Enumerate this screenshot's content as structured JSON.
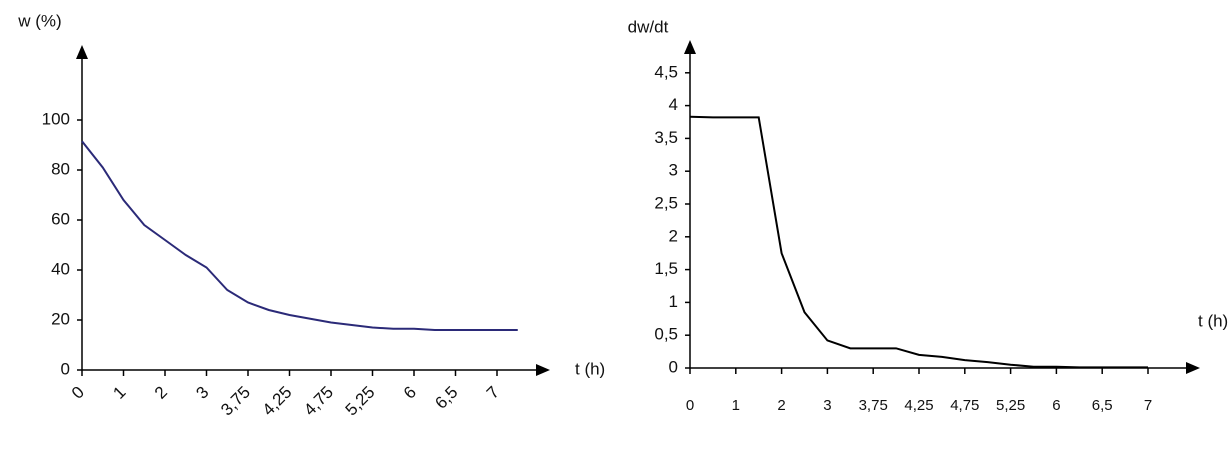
{
  "chart_data": [
    {
      "type": "line",
      "y_label": "w (%)",
      "x_label": "t (h)",
      "color": "#2b2a78",
      "categories": [
        "0",
        null,
        "1",
        null,
        "2",
        null,
        "3",
        null,
        "3,75",
        null,
        "4,25",
        null,
        "4,75",
        null,
        "5,25",
        null,
        "6",
        null,
        "6,5",
        null,
        "7",
        null
      ],
      "values": [
        91.5,
        81,
        68,
        58,
        52,
        46,
        41,
        32,
        27,
        24,
        22,
        20.5,
        19,
        18,
        17,
        16.5,
        16.5,
        16,
        16,
        16,
        16,
        16
      ],
      "ylim": [
        0,
        130
      ],
      "yticks": [
        0,
        20,
        40,
        60,
        80,
        100
      ]
    },
    {
      "type": "line",
      "y_label": "dw/dt",
      "x_label": "t (h)",
      "color": "#000000",
      "categories": [
        "0",
        null,
        "1",
        null,
        "2",
        null,
        "3",
        null,
        "3,75",
        null,
        "4,25",
        null,
        "4,75",
        null,
        "5,25",
        null,
        "6",
        null,
        "6,5",
        null,
        "7"
      ],
      "values": [
        3.83,
        3.82,
        3.82,
        3.82,
        1.75,
        0.85,
        0.42,
        0.3,
        0.3,
        0.3,
        0.2,
        0.17,
        0.12,
        0.09,
        0.05,
        0.02,
        0.02,
        0.01,
        0.01,
        0.01,
        0.01
      ],
      "ylim": [
        0,
        5
      ],
      "yticks": [
        0,
        {
          "value": 0.5,
          "label": "0,5"
        },
        1,
        {
          "value": 1.5,
          "label": "1,5"
        },
        2,
        {
          "value": 2.5,
          "label": "2,5"
        },
        3,
        {
          "value": 3.5,
          "label": "3,5"
        },
        4,
        {
          "value": 4.5,
          "label": "4,5"
        }
      ]
    }
  ]
}
